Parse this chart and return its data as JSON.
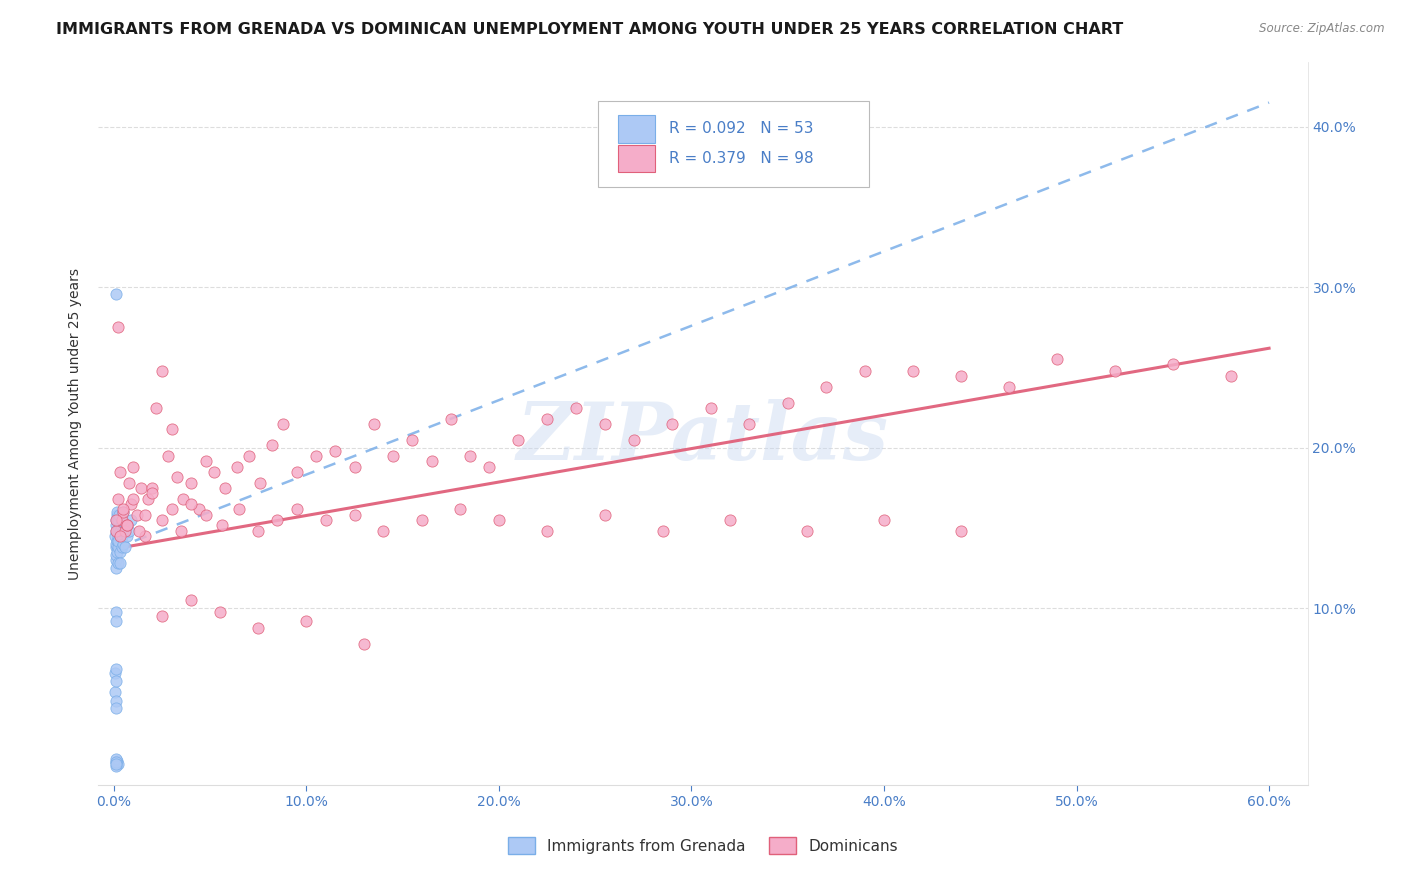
{
  "title": "IMMIGRANTS FROM GRENADA VS DOMINICAN UNEMPLOYMENT AMONG YOUTH UNDER 25 YEARS CORRELATION CHART",
  "source": "Source: ZipAtlas.com",
  "ylabel": "Unemployment Among Youth under 25 years",
  "legend1_label": "Immigrants from Grenada",
  "legend2_label": "Dominicans",
  "R1": "0.092",
  "N1": "53",
  "R2": "0.379",
  "N2": "98",
  "scatter_color1": "#adc9f5",
  "scatter_color2": "#f5adc9",
  "line_color1": "#7aaee8",
  "line_color2": "#e0607a",
  "watermark": "ZIPatlas",
  "watermark_color": "#c8d8f0",
  "background_color": "#ffffff",
  "title_fontsize": 11.5,
  "axis_color": "#4a7ec7",
  "text_color": "#333333",
  "grid_color": "#dddddd",
  "xlim": [
    0.0,
    0.62
  ],
  "ylim": [
    0.0,
    0.44
  ],
  "xtick_vals": [
    0.0,
    0.1,
    0.2,
    0.3,
    0.4,
    0.5,
    0.6
  ],
  "xtick_labels": [
    "0.0%",
    "10.0%",
    "20.0%",
    "30.0%",
    "40.0%",
    "50.0%",
    "60.0%"
  ],
  "ytick_right_vals": [
    0.1,
    0.2,
    0.3,
    0.4
  ],
  "ytick_right_labels": [
    "10.0%",
    "20.0%",
    "30.0%",
    "40.0%"
  ],
  "grenada_x": [
    0.0008,
    0.0009,
    0.001,
    0.001,
    0.001,
    0.001,
    0.001,
    0.0012,
    0.0012,
    0.0015,
    0.0015,
    0.0015,
    0.0018,
    0.002,
    0.002,
    0.002,
    0.002,
    0.002,
    0.0022,
    0.0025,
    0.003,
    0.003,
    0.003,
    0.003,
    0.0035,
    0.004,
    0.004,
    0.004,
    0.005,
    0.005,
    0.005,
    0.006,
    0.006,
    0.007,
    0.007,
    0.008,
    0.009,
    0.001,
    0.001,
    0.0008,
    0.0008,
    0.0009,
    0.001,
    0.001,
    0.0012,
    0.0015,
    0.002,
    0.001,
    0.001,
    0.001,
    0.001,
    0.001,
    0.001
  ],
  "grenada_y": [
    0.145,
    0.138,
    0.152,
    0.148,
    0.13,
    0.125,
    0.133,
    0.155,
    0.14,
    0.158,
    0.142,
    0.135,
    0.16,
    0.145,
    0.138,
    0.128,
    0.148,
    0.155,
    0.142,
    0.158,
    0.145,
    0.135,
    0.128,
    0.148,
    0.152,
    0.145,
    0.138,
    0.155,
    0.148,
    0.14,
    0.16,
    0.148,
    0.138,
    0.145,
    0.152,
    0.148,
    0.155,
    0.098,
    0.092,
    0.06,
    0.048,
    0.042,
    0.055,
    0.038,
    0.062,
    0.005,
    0.003,
    0.004,
    0.296,
    0.006,
    0.002,
    0.004,
    0.003
  ],
  "dominican_x": [
    0.001,
    0.002,
    0.003,
    0.004,
    0.005,
    0.006,
    0.007,
    0.008,
    0.009,
    0.01,
    0.012,
    0.014,
    0.016,
    0.018,
    0.02,
    0.022,
    0.025,
    0.028,
    0.03,
    0.033,
    0.036,
    0.04,
    0.044,
    0.048,
    0.052,
    0.058,
    0.064,
    0.07,
    0.076,
    0.082,
    0.088,
    0.095,
    0.105,
    0.115,
    0.125,
    0.135,
    0.145,
    0.155,
    0.165,
    0.175,
    0.185,
    0.195,
    0.21,
    0.225,
    0.24,
    0.255,
    0.27,
    0.29,
    0.31,
    0.33,
    0.35,
    0.37,
    0.39,
    0.415,
    0.44,
    0.465,
    0.49,
    0.52,
    0.55,
    0.58,
    0.001,
    0.002,
    0.003,
    0.005,
    0.007,
    0.01,
    0.013,
    0.016,
    0.02,
    0.025,
    0.03,
    0.035,
    0.04,
    0.048,
    0.056,
    0.065,
    0.075,
    0.085,
    0.095,
    0.11,
    0.125,
    0.14,
    0.16,
    0.18,
    0.2,
    0.225,
    0.255,
    0.285,
    0.32,
    0.36,
    0.4,
    0.44,
    0.025,
    0.04,
    0.055,
    0.075,
    0.1,
    0.13
  ],
  "dominican_y": [
    0.148,
    0.275,
    0.185,
    0.155,
    0.16,
    0.148,
    0.152,
    0.178,
    0.165,
    0.188,
    0.158,
    0.175,
    0.145,
    0.168,
    0.175,
    0.225,
    0.248,
    0.195,
    0.212,
    0.182,
    0.168,
    0.178,
    0.162,
    0.192,
    0.185,
    0.175,
    0.188,
    0.195,
    0.178,
    0.202,
    0.215,
    0.185,
    0.195,
    0.198,
    0.188,
    0.215,
    0.195,
    0.205,
    0.192,
    0.218,
    0.195,
    0.188,
    0.205,
    0.218,
    0.225,
    0.215,
    0.205,
    0.215,
    0.225,
    0.215,
    0.228,
    0.238,
    0.248,
    0.248,
    0.245,
    0.238,
    0.255,
    0.248,
    0.252,
    0.245,
    0.155,
    0.168,
    0.145,
    0.162,
    0.152,
    0.168,
    0.148,
    0.158,
    0.172,
    0.155,
    0.162,
    0.148,
    0.165,
    0.158,
    0.152,
    0.162,
    0.148,
    0.155,
    0.162,
    0.155,
    0.158,
    0.148,
    0.155,
    0.162,
    0.155,
    0.148,
    0.158,
    0.148,
    0.155,
    0.148,
    0.155,
    0.148,
    0.095,
    0.105,
    0.098,
    0.088,
    0.092,
    0.078
  ],
  "grenada_line_x": [
    0.0,
    0.6
  ],
  "grenada_line_y": [
    0.137,
    0.415
  ],
  "dominican_line_x": [
    0.0,
    0.6
  ],
  "dominican_line_y": [
    0.137,
    0.262
  ]
}
